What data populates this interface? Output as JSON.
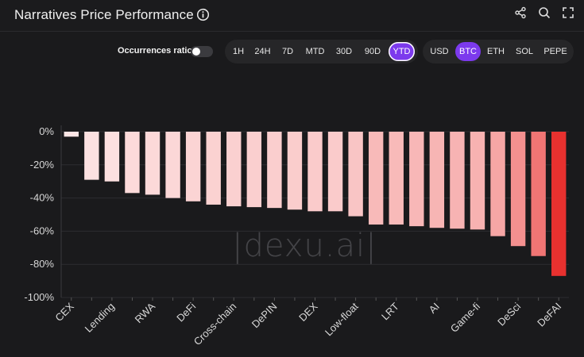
{
  "header": {
    "title": "Narratives Price Performance",
    "icons": [
      "info-icon",
      "share-icon",
      "search-icon",
      "fullscreen-icon"
    ]
  },
  "controls": {
    "occurrences_label": "Occurrences ratio",
    "occurrences_on": false,
    "timeframes": [
      "1H",
      "24H",
      "7D",
      "MTD",
      "30D",
      "90D",
      "YTD"
    ],
    "timeframe_selected": "YTD",
    "currencies": [
      "USD",
      "BTC",
      "ETH",
      "SOL",
      "PEPE"
    ],
    "currency_selected": "BTC"
  },
  "watermark": "|dexu.ai|",
  "colors": {
    "accent": "#7c3aed",
    "bar_light": "#fde4e4",
    "bar_dark": "#e8312f"
  },
  "chart_data": {
    "type": "bar",
    "categories": [
      "CEX",
      "",
      "Lending",
      "",
      "RWA",
      "",
      "DeFi",
      "",
      "Cross-chain",
      "",
      "DePIN",
      "",
      "DEX",
      "",
      "Low-float",
      "",
      "LRT",
      "",
      "AI",
      "",
      "Game-fi",
      "",
      "DeSci",
      "",
      "DeFAI"
    ],
    "values": [
      -3,
      -29,
      -30,
      -37,
      -38,
      -40,
      -42,
      -44,
      -45,
      -45.5,
      -46,
      -47,
      -48,
      -48,
      -51,
      -56,
      -56,
      -57,
      -58,
      -58.5,
      -59,
      -63,
      -69,
      -75,
      -87
    ],
    "ylim": [
      -100,
      0
    ],
    "yticks": [
      0,
      -20,
      -40,
      -60,
      -80,
      -100
    ],
    "ytick_labels": [
      "0%",
      "-20%",
      "-40%",
      "-60%",
      "-80%",
      "-100%"
    ],
    "grid": true
  }
}
